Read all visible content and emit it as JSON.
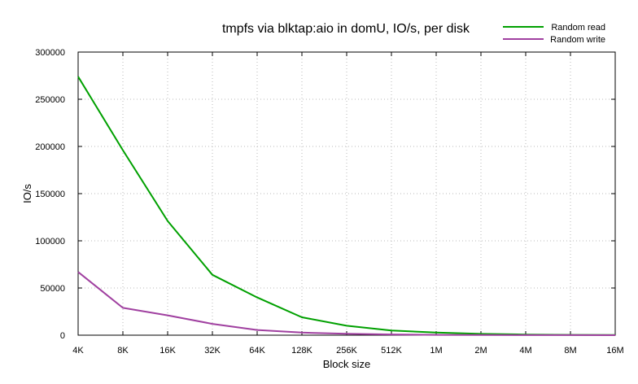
{
  "chart_data": {
    "type": "line",
    "title": "tmpfs via blktap:aio in domU, IO/s, per disk",
    "xlabel": "Block size",
    "ylabel": "IO/s",
    "categories": [
      "4K",
      "8K",
      "16K",
      "32K",
      "64K",
      "128K",
      "256K",
      "512K",
      "1M",
      "2M",
      "4M",
      "8M",
      "16M"
    ],
    "ylim": [
      0,
      300000
    ],
    "yticks": [
      "0",
      "50000",
      "100000",
      "150000",
      "200000",
      "250000",
      "300000"
    ],
    "grid": true,
    "legend_position": "top-right",
    "series": [
      {
        "name": "Random read",
        "color": "#00a000",
        "values": [
          274000,
          196000,
          121000,
          64000,
          40000,
          19000,
          10000,
          5000,
          2800,
          1400,
          700,
          350,
          180
        ]
      },
      {
        "name": "Random write",
        "color": "#a040a0",
        "values": [
          67000,
          29000,
          21000,
          12000,
          5500,
          2800,
          1500,
          750,
          380,
          190,
          100,
          50,
          25
        ]
      }
    ]
  }
}
